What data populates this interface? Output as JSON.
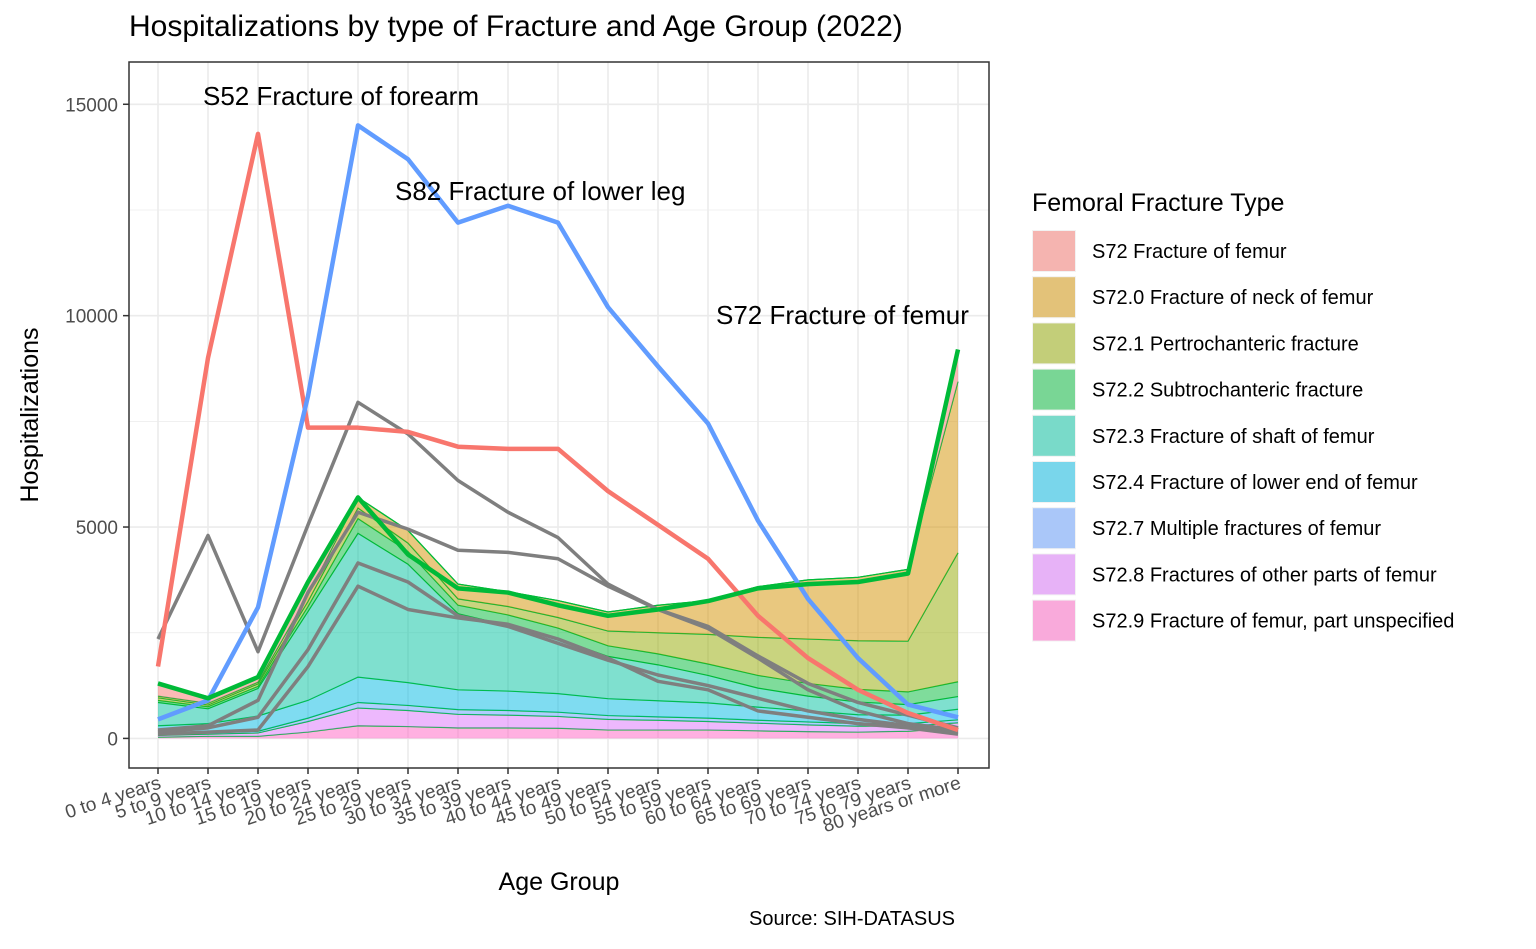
{
  "chart_data": {
    "type": "area",
    "title": "Hospitalizations by type of Fracture and Age Group (2022)",
    "xlabel": "Age Group",
    "ylabel": "Hospitalizations",
    "caption": "Source: SIH-DATASUS",
    "ylim": [
      -700,
      16000
    ],
    "yticks": [
      0,
      5000,
      10000,
      15000
    ],
    "grid": true,
    "legend_position": "right",
    "categories": [
      "0 to 4 years",
      "5 to 9 years",
      "10 to 14 years",
      "15 to 19 years",
      "20 to 24 years",
      "25 to 29 years",
      "30 to 34 years",
      "35 to 39 years",
      "40 to 44 years",
      "45 to 49 years",
      "50 to 54 years",
      "55 to 59 years",
      "60 to 64 years",
      "65 to 69 years",
      "70 to 74 years",
      "75 to 79 years",
      "80 years or more"
    ],
    "legend": {
      "title": "Femoral Fracture Type",
      "entries": [
        {
          "label": "S72 Fracture of femur",
          "color": "#F8766D"
        },
        {
          "label": "S72.0 Fracture of neck of femur",
          "color": "#D39200"
        },
        {
          "label": "S72.1 Pertrochanteric fracture",
          "color": "#93AA00"
        },
        {
          "label": "S72.2 Subtrochanteric fracture",
          "color": "#00BA38"
        },
        {
          "label": "S72.3 Fracture of shaft of femur",
          "color": "#00C19F"
        },
        {
          "label": "S72.4 Fracture of lower end of femur",
          "color": "#00B9E3"
        },
        {
          "label": "S72.7 Multiple fractures of femur",
          "color": "#619CFF"
        },
        {
          "label": "S72.8 Fractures of other parts of femur",
          "color": "#DB72FB"
        },
        {
          "label": "S72.9 Fracture of femur, part unspecified",
          "color": "#FF61C3"
        }
      ]
    },
    "lines": [
      {
        "name": "S52 Fracture of forearm",
        "color": "#F8766D",
        "values": [
          1700,
          9000,
          14300,
          7350,
          7350,
          7250,
          6900,
          6850,
          6850,
          5850,
          5050,
          4250,
          2900,
          1900,
          1150,
          600,
          200
        ]
      },
      {
        "name": "S82 Fracture of lower leg",
        "color": "#619CFF",
        "values": [
          450,
          900,
          3100,
          8100,
          14500,
          13700,
          12200,
          12600,
          12200,
          10200,
          8800,
          7450,
          5150,
          3300,
          1900,
          800,
          500
        ]
      },
      {
        "name": "S72 Fracture of femur",
        "color": "#00BA38",
        "values": [
          1300,
          950,
          1450,
          3700,
          5700,
          4350,
          3550,
          3450,
          3150,
          2900,
          3050,
          3250,
          3550,
          3650,
          3700,
          3900,
          9200
        ]
      }
    ],
    "grey_lines": [
      [
        2350,
        4800,
        2050,
        5050,
        7950,
        7200,
        6100,
        5350,
        4750,
        3650,
        3050,
        2600,
        1900,
        1150,
        650,
        350,
        200
      ],
      [
        200,
        300,
        900,
        3450,
        5350,
        4950,
        4450,
        4400,
        4250,
        3600,
        3050,
        2650,
        1950,
        1300,
        850,
        550,
        250
      ],
      [
        150,
        250,
        500,
        2100,
        4150,
        3700,
        2900,
        2650,
        2250,
        1850,
        1500,
        1250,
        950,
        650,
        450,
        300,
        150
      ],
      [
        100,
        150,
        200,
        1700,
        3600,
        3050,
        2850,
        2700,
        2350,
        1900,
        1350,
        1150,
        650,
        500,
        350,
        250,
        100
      ]
    ],
    "stack": [
      {
        "name": "S72.9 Fracture of femur, part unspecified",
        "color": "#FF61C3",
        "values": [
          30,
          50,
          50,
          150,
          300,
          280,
          250,
          250,
          240,
          200,
          200,
          200,
          180,
          160,
          150,
          170,
          250
        ]
      },
      {
        "name": "S72.8 Fractures of other parts of femur",
        "color": "#DB72FB",
        "values": [
          40,
          50,
          80,
          250,
          420,
          380,
          320,
          300,
          280,
          250,
          230,
          200,
          180,
          160,
          140,
          120,
          120
        ]
      },
      {
        "name": "S72.7 Multiple fractures of femur",
        "color": "#619CFF",
        "values": [
          20,
          30,
          40,
          80,
          130,
          120,
          110,
          110,
          100,
          90,
          80,
          80,
          70,
          70,
          60,
          60,
          70
        ]
      },
      {
        "name": "S72.4 Fracture of lower end of femur",
        "color": "#00B9E3",
        "values": [
          210,
          220,
          360,
          420,
          600,
          540,
          470,
          460,
          440,
          400,
          380,
          360,
          310,
          260,
          210,
          200,
          250
        ]
      },
      {
        "name": "S72.3 Fracture of shaft of femur",
        "color": "#00C19F",
        "values": [
          550,
          350,
          650,
          2100,
          3400,
          2800,
          1800,
          1550,
          1300,
          1000,
          850,
          650,
          450,
          350,
          300,
          250,
          300
        ]
      },
      {
        "name": "S72.2 Subtrochanteric fracture",
        "color": "#00BA38",
        "values": [
          50,
          50,
          50,
          120,
          350,
          300,
          200,
          250,
          250,
          250,
          260,
          270,
          300,
          300,
          300,
          300,
          350
        ]
      },
      {
        "name": "S72.1 Pertrochanteric fracture",
        "color": "#93AA00",
        "values": [
          60,
          40,
          60,
          120,
          250,
          200,
          150,
          200,
          250,
          350,
          500,
          700,
          900,
          1050,
          1150,
          1200,
          3050
        ]
      },
      {
        "name": "S72.0 Fracture of neck of femur",
        "color": "#D39200",
        "values": [
          40,
          40,
          40,
          150,
          250,
          300,
          350,
          350,
          400,
          450,
          650,
          800,
          1200,
          1400,
          1500,
          1700,
          4050
        ]
      },
      {
        "name": "S72 Fracture of femur",
        "color": "#F8766D",
        "values": [
          300,
          160,
          120,
          310,
          0,
          0,
          0,
          0,
          0,
          0,
          0,
          0,
          0,
          0,
          0,
          0,
          760
        ]
      }
    ]
  }
}
